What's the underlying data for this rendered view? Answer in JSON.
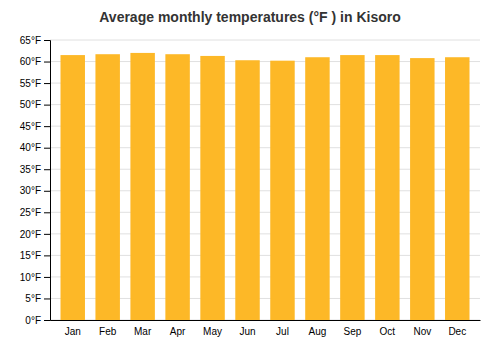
{
  "chart_data": {
    "type": "bar",
    "title": "Average monthly temperatures (°F ) in Kisoro",
    "categories": [
      "Jan",
      "Feb",
      "Mar",
      "Apr",
      "May",
      "Jun",
      "Jul",
      "Aug",
      "Sep",
      "Oct",
      "Nov",
      "Dec"
    ],
    "values": [
      61.5,
      61.7,
      62.0,
      61.7,
      61.3,
      60.3,
      60.2,
      61.0,
      61.5,
      61.5,
      60.8,
      61.0
    ],
    "color": "#FDB827",
    "ylim": [
      0,
      65
    ],
    "yticks": [
      {
        "value": 0,
        "label": "0°F"
      },
      {
        "value": 5,
        "label": "5°F"
      },
      {
        "value": 10,
        "label": "10°F"
      },
      {
        "value": 15,
        "label": "15°F"
      },
      {
        "value": 20,
        "label": "20°F"
      },
      {
        "value": 25,
        "label": "25°F"
      },
      {
        "value": 30,
        "label": "30°F"
      },
      {
        "value": 35,
        "label": "35°F"
      },
      {
        "value": 40,
        "label": "40°F"
      },
      {
        "value": 45,
        "label": "45°F"
      },
      {
        "value": 50,
        "label": "50°F"
      },
      {
        "value": 55,
        "label": "55°F"
      },
      {
        "value": 60,
        "label": "60°F"
      },
      {
        "value": 65,
        "label": "65°F"
      }
    ],
    "grid": true
  }
}
